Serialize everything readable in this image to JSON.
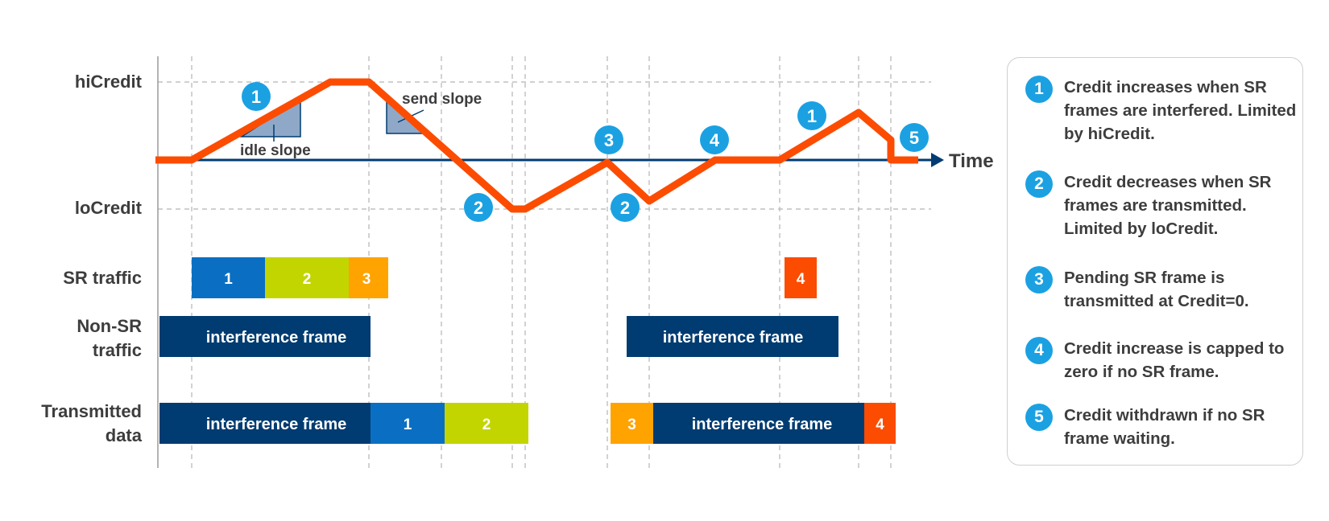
{
  "labels": {
    "hiCredit": "hiCredit",
    "loCredit": "loCredit",
    "time": "Time",
    "sr_traffic": "SR traffic",
    "non_sr_line1": "Non-SR",
    "non_sr_line2": "traffic",
    "transmitted_line1": "Transmitted",
    "transmitted_line2": "data",
    "idle_slope": "idle slope",
    "send_slope": "send slope"
  },
  "credit_curve": [
    [
      "t0",
      0
    ],
    [
      "t1",
      0
    ],
    [
      "t2",
      1
    ],
    [
      "t3",
      1
    ],
    [
      "t4",
      0
    ],
    [
      "t5",
      -1
    ],
    [
      "t6",
      -1
    ],
    [
      "t7",
      0
    ],
    [
      "t8",
      -0.5
    ],
    [
      "t9",
      0
    ],
    [
      "t10",
      0
    ],
    [
      "t11",
      0.6
    ],
    [
      "t12",
      0
    ],
    [
      "t13",
      0
    ]
  ],
  "callouts": [
    {
      "number": "1"
    },
    {
      "number": "2"
    },
    {
      "number": "3"
    },
    {
      "number": "2"
    },
    {
      "number": "4"
    },
    {
      "number": "1"
    },
    {
      "number": "5"
    }
  ],
  "sr_frames": [
    {
      "label": "1",
      "color": "#0a6fc2"
    },
    {
      "label": "2",
      "color": "#c3d500"
    },
    {
      "label": "3",
      "color": "#ffa300"
    },
    {
      "label": "4",
      "color": "#fc4c02"
    }
  ],
  "non_sr_frames": [
    {
      "label": "interference frame",
      "color": "#003c71"
    },
    {
      "label": "interference frame",
      "color": "#003c71"
    }
  ],
  "transmitted_frames": [
    {
      "label": "interference frame",
      "color": "#003c71"
    },
    {
      "label": "1",
      "color": "#0a6fc2"
    },
    {
      "label": "2",
      "color": "#c3d500"
    },
    {
      "label": "3",
      "color": "#ffa300"
    },
    {
      "label": "interference frame",
      "color": "#003c71"
    },
    {
      "label": "4",
      "color": "#fc4c02"
    }
  ],
  "legend": {
    "items": [
      {
        "number": "1",
        "text": "Credit increases when SR frames are interfered. Limited by hiCredit."
      },
      {
        "number": "2",
        "text": "Credit decreases when SR frames are transmitted. Limited by loCredit."
      },
      {
        "number": "3",
        "text": "Pending SR frame is transmitted at Credit=0."
      },
      {
        "number": "4",
        "text": "Credit increase is capped to zero if no SR frame."
      },
      {
        "number": "5",
        "text": "Credit withdrawn if no SR frame waiting."
      }
    ]
  },
  "colors": {
    "credit_line": "#fc4c02",
    "time_axis": "#003c71",
    "callout": "#1ba1e2",
    "slope_fill": "#8fa8c8",
    "label_text": "#3d3d3d",
    "gridline": "#b5b5b5"
  }
}
